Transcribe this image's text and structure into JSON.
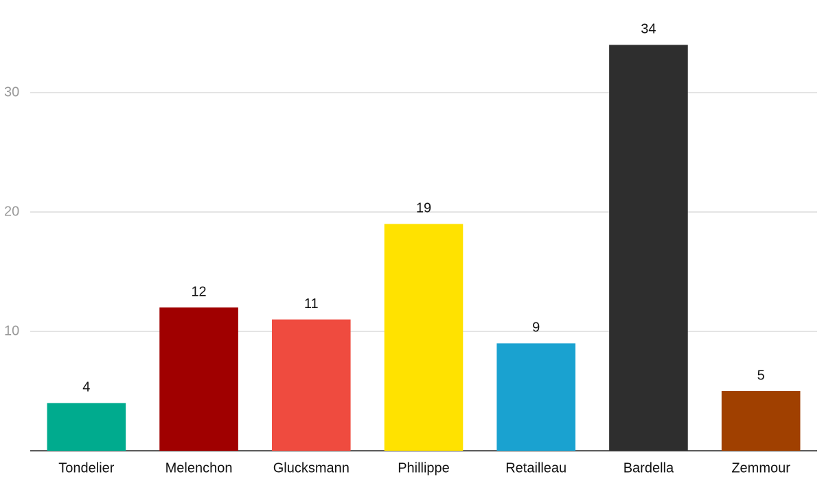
{
  "chart_data": {
    "type": "bar",
    "categories": [
      "Tondelier",
      "Melenchon",
      "Glucksmann",
      "Phillippe",
      "Retailleau",
      "Bardella",
      "Zemmour"
    ],
    "values": [
      4,
      12,
      11,
      19,
      9,
      34,
      5
    ],
    "colors": [
      "#00ab8e",
      "#a00000",
      "#ef4b3f",
      "#ffe200",
      "#1aa2d0",
      "#2e2e2e",
      "#a04000"
    ],
    "ylim": [
      0,
      35
    ],
    "yticks": [
      10,
      20,
      30
    ],
    "grid": true
  }
}
